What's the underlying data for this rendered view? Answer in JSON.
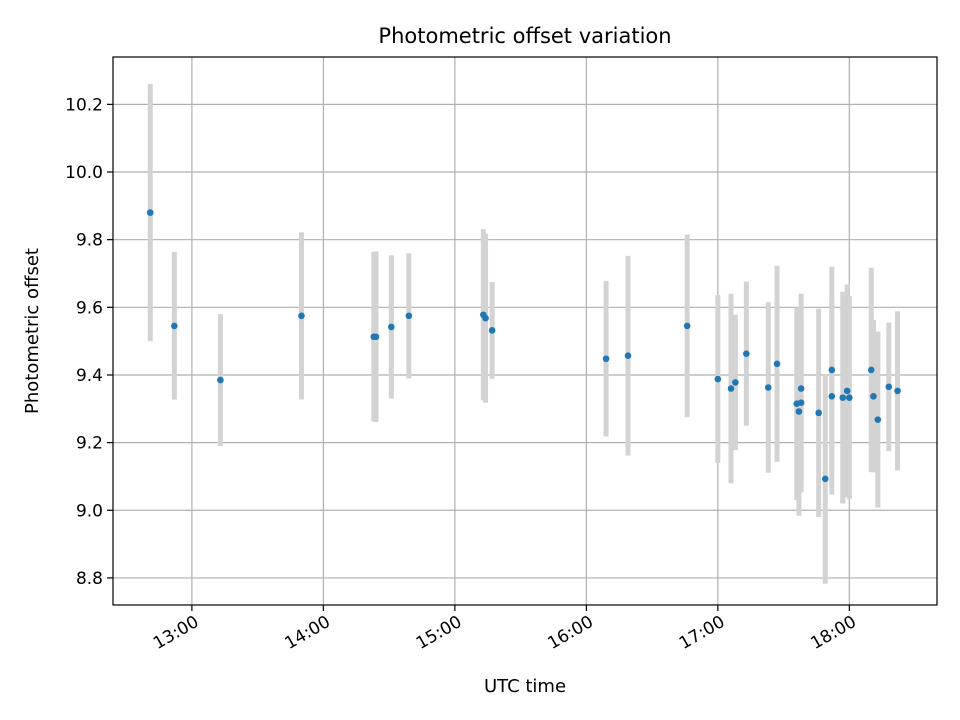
{
  "chart_data": {
    "type": "scatter",
    "title": "Photometric offset variation",
    "xlabel": "UTC time",
    "ylabel": "Photometric offset",
    "x_ticks": [
      "13:00",
      "14:00",
      "15:00",
      "16:00",
      "17:00",
      "18:00"
    ],
    "y_ticks": [
      "8.8",
      "9.0",
      "9.2",
      "9.4",
      "9.6",
      "9.8",
      "10.0",
      "10.2"
    ],
    "xlim": [
      "12:24",
      "18:40"
    ],
    "ylim": [
      8.72,
      10.34
    ],
    "grid": true,
    "point_color": "#1f77b4",
    "errorbar_color": "#d3d3d3",
    "series": [
      {
        "points": [
          {
            "x": "12:41",
            "y": 9.88,
            "err": 0.38
          },
          {
            "x": "12:52",
            "y": 9.545,
            "err": 0.218
          },
          {
            "x": "13:13",
            "y": 9.385,
            "err": 0.195
          },
          {
            "x": "13:50",
            "y": 9.575,
            "err": 0.247
          },
          {
            "x": "14:23",
            "y": 9.513,
            "err": 0.25
          },
          {
            "x": "14:24",
            "y": 9.513,
            "err": 0.252
          },
          {
            "x": "14:31",
            "y": 9.542,
            "err": 0.212
          },
          {
            "x": "14:39",
            "y": 9.575,
            "err": 0.185
          },
          {
            "x": "15:13",
            "y": 9.578,
            "err": 0.253
          },
          {
            "x": "15:14",
            "y": 9.568,
            "err": 0.25
          },
          {
            "x": "15:17",
            "y": 9.532,
            "err": 0.143
          },
          {
            "x": "16:09",
            "y": 9.448,
            "err": 0.23
          },
          {
            "x": "16:19",
            "y": 9.457,
            "err": 0.295
          },
          {
            "x": "16:46",
            "y": 9.545,
            "err": 0.27
          },
          {
            "x": "17:00",
            "y": 9.388,
            "err": 0.248
          },
          {
            "x": "17:06",
            "y": 9.36,
            "err": 0.28
          },
          {
            "x": "17:08",
            "y": 9.378,
            "err": 0.2
          },
          {
            "x": "17:13",
            "y": 9.463,
            "err": 0.213
          },
          {
            "x": "17:23",
            "y": 9.363,
            "err": 0.252
          },
          {
            "x": "17:27",
            "y": 9.433,
            "err": 0.29
          },
          {
            "x": "17:36",
            "y": 9.315,
            "err": 0.285
          },
          {
            "x": "17:37",
            "y": 9.292,
            "err": 0.308
          },
          {
            "x": "17:38",
            "y": 9.318,
            "err": 0.265
          },
          {
            "x": "17:38",
            "y": 9.36,
            "err": 0.28
          },
          {
            "x": "17:46",
            "y": 9.288,
            "err": 0.308
          },
          {
            "x": "17:49",
            "y": 9.093,
            "err": 0.31
          },
          {
            "x": "17:52",
            "y": 9.337,
            "err": 0.29
          },
          {
            "x": "17:52",
            "y": 9.415,
            "err": 0.305
          },
          {
            "x": "17:57",
            "y": 9.333,
            "err": 0.313
          },
          {
            "x": "17:59",
            "y": 9.353,
            "err": 0.315
          },
          {
            "x": "18:00",
            "y": 9.333,
            "err": 0.3
          },
          {
            "x": "18:10",
            "y": 9.415,
            "err": 0.302
          },
          {
            "x": "18:11",
            "y": 9.337,
            "err": 0.225
          },
          {
            "x": "18:13",
            "y": 9.268,
            "err": 0.26
          },
          {
            "x": "18:18",
            "y": 9.365,
            "err": 0.19
          },
          {
            "x": "18:22",
            "y": 9.353,
            "err": 0.235
          }
        ]
      }
    ]
  }
}
